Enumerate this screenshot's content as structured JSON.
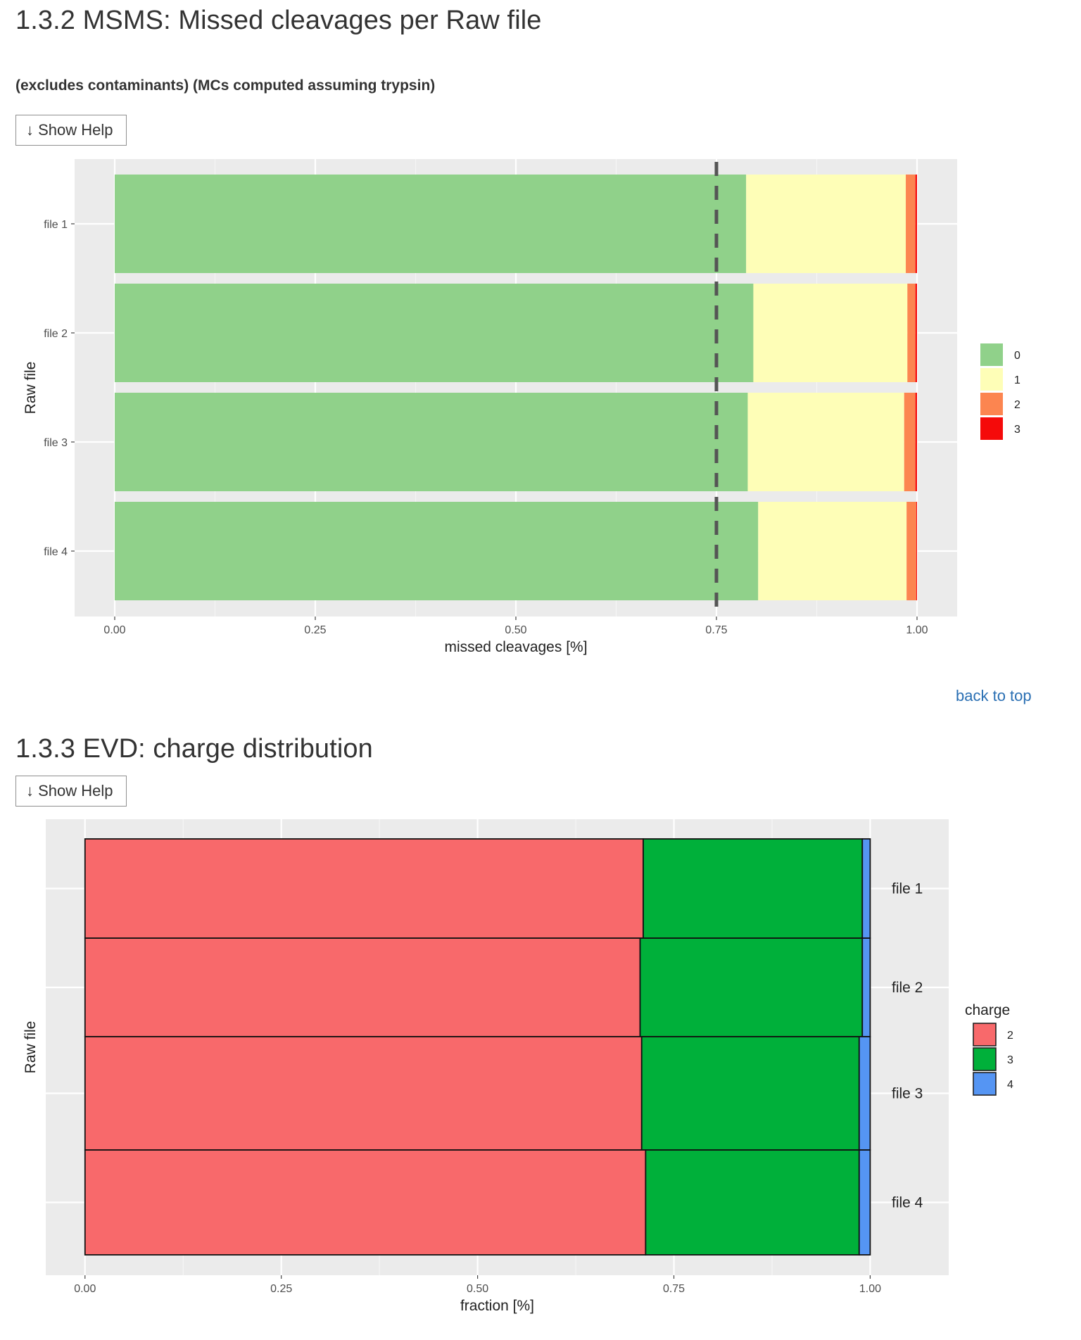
{
  "section1": {
    "title": "1.3.2 MSMS: Missed cleavages per Raw file",
    "subtitle": "(excludes contaminants) (MCs computed assuming trypsin)",
    "help_button": "↓ Show Help"
  },
  "back_to_top": "back to top",
  "section2": {
    "title": "1.3.3 EVD: charge distribution",
    "help_button": "↓ Show Help"
  },
  "chart_data": [
    {
      "type": "bar",
      "orientation": "horizontal",
      "stacked": true,
      "categories": [
        "file 1",
        "file 2",
        "file 3",
        "file 4"
      ],
      "series": [
        {
          "name": "0",
          "color": "#90d18a",
          "values": [
            0.787,
            0.796,
            0.789,
            0.802
          ]
        },
        {
          "name": "1",
          "color": "#fefeb7",
          "values": [
            0.199,
            0.192,
            0.195,
            0.185
          ]
        },
        {
          "name": "2",
          "color": "#fc8550",
          "values": [
            0.012,
            0.01,
            0.014,
            0.012
          ]
        },
        {
          "name": "3",
          "color": "#f50a0a",
          "values": [
            0.002,
            0.002,
            0.002,
            0.001
          ]
        }
      ],
      "xlabel": "missed cleavages [%]",
      "ylabel": "Raw file",
      "xlim": [
        -0.05,
        1.05
      ],
      "xticks": [
        "0.00",
        "0.25",
        "0.50",
        "0.75",
        "1.00"
      ],
      "threshold_line": 0.75,
      "legend_position": "right",
      "grid": true
    },
    {
      "type": "bar",
      "orientation": "horizontal",
      "stacked": true,
      "categories": [
        "file 1",
        "file 2",
        "file 3",
        "file 4"
      ],
      "series": [
        {
          "name": "2",
          "color": "#f8696b",
          "values": [
            0.711,
            0.707,
            0.709,
            0.714
          ]
        },
        {
          "name": "3",
          "color": "#00b03a",
          "values": [
            0.279,
            0.283,
            0.277,
            0.272
          ]
        },
        {
          "name": "4",
          "color": "#5595f3",
          "values": [
            0.01,
            0.01,
            0.014,
            0.014
          ]
        }
      ],
      "xlabel": "fraction [%]",
      "ylabel": "Raw file",
      "legend_title": "charge",
      "xlim": [
        -0.05,
        1.1
      ],
      "xticks": [
        "0.00",
        "0.25",
        "0.50",
        "0.75",
        "1.00"
      ],
      "legend_position": "right",
      "grid": true
    }
  ]
}
